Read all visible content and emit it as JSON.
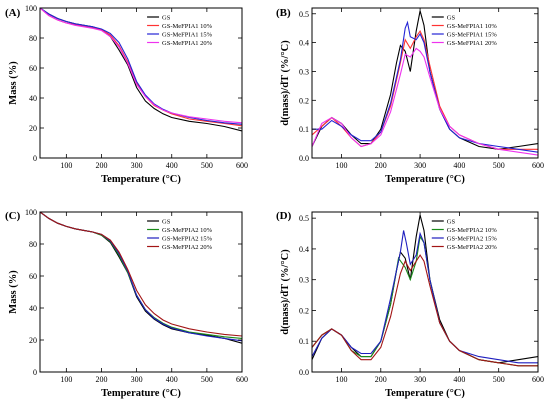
{
  "colors": {
    "GS": "#000000",
    "10": "#ff3333",
    "15": "#2424d6",
    "20": "#ee33ee",
    "MeFPIA2_10": "#1a8a1a",
    "MeFPIA2_15": "#1f1fbf",
    "MeFPIA2_20": "#a31515"
  },
  "chart_data": [
    {
      "panel": "(A)",
      "type": "line",
      "xlabel": "Temperature (°C)",
      "ylabel": "Mass (%)",
      "xlim": [
        25,
        600
      ],
      "ylim": [
        0,
        100
      ],
      "xticks": [
        100,
        200,
        300,
        400,
        500,
        600
      ],
      "yticks": [
        0,
        20,
        40,
        60,
        80,
        100
      ],
      "legend_position": "top-right",
      "series": [
        {
          "name": "GS",
          "color": "#000000",
          "x": [
            25,
            50,
            75,
            100,
            125,
            150,
            175,
            200,
            225,
            250,
            275,
            300,
            325,
            350,
            375,
            400,
            450,
            500,
            550,
            600
          ],
          "y": [
            100,
            96,
            93,
            91,
            89.5,
            88.5,
            87.5,
            85.5,
            81,
            72,
            62,
            47,
            38,
            33,
            29.5,
            27,
            24.5,
            23,
            21,
            18
          ]
        },
        {
          "name": "GS-MeFPIA1 10%",
          "color": "#ff3333",
          "x": [
            25,
            50,
            75,
            100,
            125,
            150,
            175,
            200,
            225,
            250,
            275,
            300,
            325,
            350,
            375,
            400,
            450,
            500,
            550,
            600
          ],
          "y": [
            100,
            95,
            92,
            90,
            89,
            88,
            87,
            85.5,
            82,
            75,
            64,
            50,
            41,
            35,
            32,
            29.5,
            26,
            24.5,
            23,
            21.5
          ]
        },
        {
          "name": "GS-MeFPIA1 15%",
          "color": "#2424d6",
          "x": [
            25,
            50,
            75,
            100,
            125,
            150,
            175,
            200,
            225,
            250,
            275,
            300,
            325,
            350,
            375,
            400,
            450,
            500,
            550,
            600
          ],
          "y": [
            100,
            96,
            93,
            91,
            89.5,
            88.5,
            87.5,
            86,
            83,
            77,
            66,
            51,
            42,
            36,
            32.5,
            30,
            27,
            25,
            23.5,
            22.5
          ]
        },
        {
          "name": "GS-MeFPIA1 20%",
          "color": "#ee33ee",
          "x": [
            25,
            50,
            75,
            100,
            125,
            150,
            175,
            200,
            225,
            250,
            275,
            300,
            325,
            350,
            375,
            400,
            450,
            500,
            550,
            600
          ],
          "y": [
            100,
            95,
            92,
            90,
            88.5,
            87.5,
            86.5,
            85,
            81,
            74,
            63,
            49,
            41,
            35.5,
            32,
            30,
            27.5,
            26,
            24.5,
            23.5
          ]
        }
      ]
    },
    {
      "panel": "(B)",
      "type": "line",
      "xlabel": "Temperature (°C)",
      "ylabel": "d(mass)/dT (%/°C)",
      "xlim": [
        25,
        600
      ],
      "ylim": [
        0,
        0.52
      ],
      "xticks": [
        100,
        200,
        300,
        400,
        500,
        600
      ],
      "yticks": [
        0.0,
        0.1,
        0.2,
        0.3,
        0.4,
        0.5
      ],
      "legend_position": "top-right",
      "series": [
        {
          "name": "GS",
          "color": "#000000",
          "x": [
            25,
            50,
            75,
            100,
            125,
            150,
            175,
            200,
            225,
            240,
            250,
            262,
            275,
            290,
            300,
            310,
            325,
            350,
            375,
            400,
            450,
            500,
            550,
            600
          ],
          "y": [
            0.04,
            0.11,
            0.14,
            0.12,
            0.08,
            0.05,
            0.05,
            0.1,
            0.22,
            0.33,
            0.39,
            0.37,
            0.3,
            0.44,
            0.51,
            0.46,
            0.3,
            0.17,
            0.1,
            0.07,
            0.04,
            0.03,
            0.04,
            0.05
          ]
        },
        {
          "name": "GS-MeFPIA1 10%",
          "color": "#ff3333",
          "x": [
            25,
            50,
            75,
            100,
            125,
            150,
            175,
            200,
            225,
            250,
            262,
            275,
            290,
            300,
            310,
            325,
            350,
            375,
            400,
            450,
            500,
            550,
            600
          ],
          "y": [
            0.08,
            0.11,
            0.14,
            0.11,
            0.07,
            0.04,
            0.05,
            0.09,
            0.18,
            0.33,
            0.41,
            0.38,
            0.42,
            0.44,
            0.41,
            0.32,
            0.18,
            0.11,
            0.08,
            0.05,
            0.03,
            0.03,
            0.03
          ]
        },
        {
          "name": "GS-MeFPIA1 15%",
          "color": "#2424d6",
          "x": [
            25,
            50,
            75,
            100,
            125,
            150,
            175,
            200,
            225,
            250,
            262,
            268,
            275,
            290,
            300,
            310,
            325,
            350,
            375,
            400,
            450,
            500,
            550,
            600
          ],
          "y": [
            0.1,
            0.1,
            0.13,
            0.11,
            0.08,
            0.06,
            0.06,
            0.09,
            0.19,
            0.34,
            0.45,
            0.47,
            0.42,
            0.41,
            0.43,
            0.4,
            0.3,
            0.17,
            0.1,
            0.07,
            0.05,
            0.04,
            0.03,
            0.02
          ]
        },
        {
          "name": "GS-MeFPIA1 20%",
          "color": "#ee33ee",
          "x": [
            25,
            50,
            75,
            100,
            125,
            150,
            175,
            200,
            225,
            250,
            262,
            275,
            290,
            300,
            310,
            325,
            350,
            375,
            400,
            450,
            500,
            550,
            600
          ],
          "y": [
            0.04,
            0.12,
            0.14,
            0.12,
            0.07,
            0.04,
            0.05,
            0.08,
            0.16,
            0.29,
            0.36,
            0.35,
            0.38,
            0.37,
            0.35,
            0.28,
            0.17,
            0.11,
            0.08,
            0.05,
            0.03,
            0.02,
            0.01
          ]
        }
      ]
    },
    {
      "panel": "(C)",
      "type": "line",
      "xlabel": "Temperature (°C)",
      "ylabel": "Mass (%)",
      "xlim": [
        25,
        600
      ],
      "ylim": [
        0,
        100
      ],
      "xticks": [
        100,
        200,
        300,
        400,
        500,
        600
      ],
      "yticks": [
        0,
        20,
        40,
        60,
        80,
        100
      ],
      "legend_position": "top-right",
      "series": [
        {
          "name": "GS",
          "color": "#000000",
          "x": [
            25,
            50,
            75,
            100,
            125,
            150,
            175,
            200,
            225,
            250,
            275,
            300,
            325,
            350,
            375,
            400,
            450,
            500,
            550,
            600
          ],
          "y": [
            100,
            96,
            93,
            91,
            89.5,
            88.5,
            87.5,
            85.5,
            81,
            72,
            62,
            47,
            38,
            33,
            29.5,
            27,
            24.5,
            23,
            21,
            18
          ]
        },
        {
          "name": "GS-MeFPIA2 10%",
          "color": "#1a8a1a",
          "x": [
            25,
            50,
            75,
            100,
            125,
            150,
            175,
            200,
            225,
            250,
            275,
            300,
            325,
            350,
            375,
            400,
            450,
            500,
            550,
            600
          ],
          "y": [
            100,
            96,
            93,
            91,
            89.5,
            88.5,
            87.5,
            85.5,
            81.5,
            73,
            62,
            48,
            39,
            34,
            30.5,
            28,
            25,
            23.5,
            22,
            21
          ]
        },
        {
          "name": "GS-MeFPIA2 15%",
          "color": "#1f1fbf",
          "x": [
            25,
            50,
            75,
            100,
            125,
            150,
            175,
            200,
            225,
            250,
            275,
            300,
            325,
            350,
            375,
            400,
            450,
            500,
            550,
            600
          ],
          "y": [
            100,
            96,
            93,
            91,
            89.5,
            88.5,
            87.5,
            86,
            82,
            74,
            63,
            48,
            39,
            33.5,
            30,
            27.5,
            24.5,
            22.5,
            21,
            19.5
          ]
        },
        {
          "name": "GS-MeFPIA2 20%",
          "color": "#a31515",
          "x": [
            25,
            50,
            75,
            100,
            125,
            150,
            175,
            200,
            225,
            250,
            275,
            300,
            325,
            350,
            375,
            400,
            450,
            500,
            550,
            600
          ],
          "y": [
            100,
            96,
            93,
            91,
            89.5,
            88.5,
            87.5,
            86,
            82.5,
            75,
            64,
            51,
            42,
            36.5,
            32.5,
            30,
            27,
            25,
            23.5,
            22.5
          ]
        }
      ]
    },
    {
      "panel": "(D)",
      "type": "line",
      "xlabel": "Temperature (°C)",
      "ylabel": "d(mass)/dT (%/°C)",
      "xlim": [
        25,
        600
      ],
      "ylim": [
        0,
        0.52
      ],
      "xticks": [
        100,
        200,
        300,
        400,
        500,
        600
      ],
      "yticks": [
        0.0,
        0.1,
        0.2,
        0.3,
        0.4,
        0.5
      ],
      "legend_position": "top-right",
      "series": [
        {
          "name": "GS",
          "color": "#000000",
          "x": [
            25,
            50,
            75,
            100,
            125,
            150,
            175,
            200,
            225,
            240,
            250,
            262,
            275,
            290,
            300,
            310,
            325,
            350,
            375,
            400,
            450,
            500,
            550,
            600
          ],
          "y": [
            0.04,
            0.11,
            0.14,
            0.12,
            0.08,
            0.05,
            0.05,
            0.1,
            0.22,
            0.33,
            0.39,
            0.37,
            0.3,
            0.44,
            0.51,
            0.46,
            0.3,
            0.17,
            0.1,
            0.07,
            0.04,
            0.03,
            0.04,
            0.05
          ]
        },
        {
          "name": "GS-MeFPIA2 10%",
          "color": "#1a8a1a",
          "x": [
            25,
            50,
            75,
            100,
            125,
            150,
            175,
            200,
            225,
            245,
            262,
            275,
            290,
            300,
            310,
            325,
            350,
            375,
            400,
            450,
            500,
            550,
            600
          ],
          "y": [
            0.08,
            0.12,
            0.14,
            0.12,
            0.07,
            0.05,
            0.05,
            0.1,
            0.22,
            0.37,
            0.34,
            0.3,
            0.36,
            0.44,
            0.42,
            0.3,
            0.16,
            0.1,
            0.07,
            0.04,
            0.03,
            0.02,
            0.02
          ]
        },
        {
          "name": "GS-MeFPIA2 15%",
          "color": "#1f1fbf",
          "x": [
            25,
            50,
            75,
            100,
            125,
            150,
            175,
            200,
            225,
            250,
            258,
            265,
            275,
            290,
            300,
            310,
            325,
            350,
            375,
            400,
            450,
            500,
            550,
            600
          ],
          "y": [
            0.05,
            0.11,
            0.14,
            0.12,
            0.08,
            0.06,
            0.06,
            0.1,
            0.24,
            0.39,
            0.46,
            0.42,
            0.35,
            0.38,
            0.45,
            0.42,
            0.3,
            0.16,
            0.1,
            0.07,
            0.05,
            0.04,
            0.03,
            0.03
          ]
        },
        {
          "name": "GS-MeFPIA2 20%",
          "color": "#a31515",
          "x": [
            25,
            50,
            75,
            100,
            125,
            150,
            175,
            200,
            225,
            250,
            262,
            275,
            290,
            300,
            310,
            325,
            350,
            375,
            400,
            450,
            500,
            550,
            600
          ],
          "y": [
            0.08,
            0.12,
            0.14,
            0.12,
            0.07,
            0.04,
            0.04,
            0.08,
            0.18,
            0.32,
            0.36,
            0.33,
            0.36,
            0.38,
            0.36,
            0.28,
            0.16,
            0.1,
            0.07,
            0.04,
            0.03,
            0.02,
            0.02
          ]
        }
      ]
    }
  ]
}
